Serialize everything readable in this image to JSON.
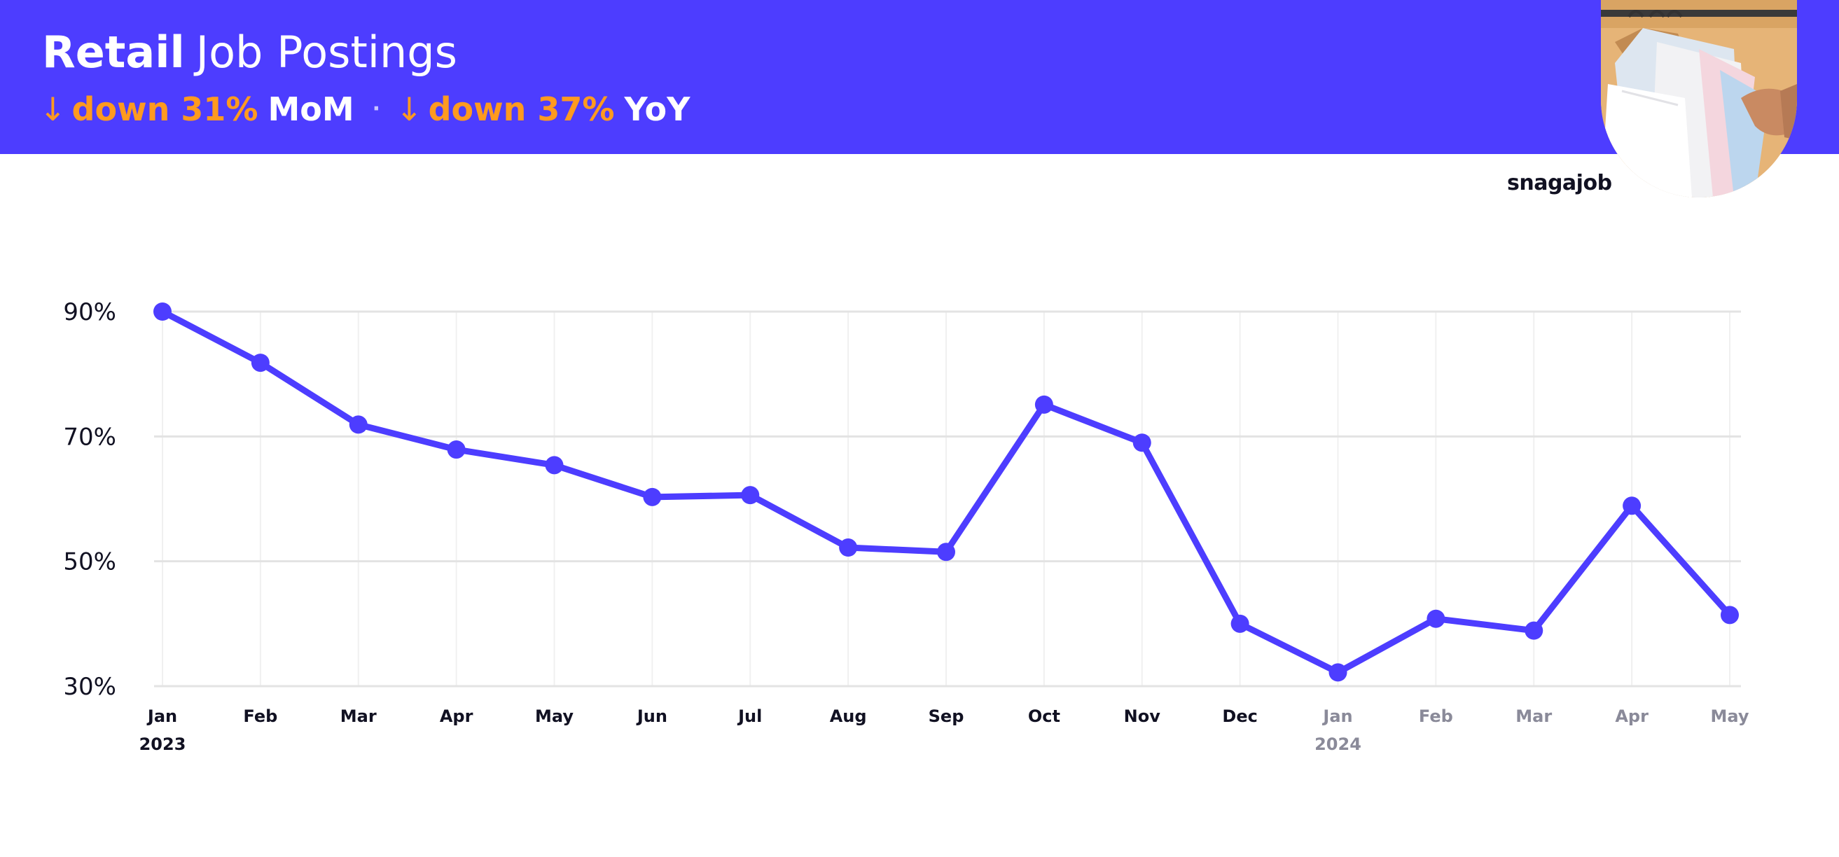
{
  "header": {
    "title_bold": "Retail",
    "title_rest": "Job Postings",
    "mom": {
      "arrow": "↓",
      "text": "down 31%",
      "label": "MoM"
    },
    "separator": "·",
    "yoy": {
      "arrow": "↓",
      "text": "down 37%",
      "label": "YoY"
    }
  },
  "brand": {
    "logo": "snagajob"
  },
  "colors": {
    "banner": "#4d3dff",
    "accent_orange": "#ff9a1f",
    "line": "#4d3dff",
    "grid": "#e3e3e3",
    "tick_dark": "#111122",
    "tick_muted": "#8a8a99"
  },
  "chart_data": {
    "type": "line",
    "title": "",
    "xlabel": "",
    "ylabel": "",
    "ylim": [
      30,
      90
    ],
    "y_ticks": [
      {
        "value": 90,
        "label": "90%"
      },
      {
        "value": 70,
        "label": "70%"
      },
      {
        "value": 50,
        "label": "50%"
      },
      {
        "value": 30,
        "label": "30%"
      }
    ],
    "grid": true,
    "legend": "none",
    "x": [
      {
        "label": "Jan",
        "sub": "2023",
        "muted": false
      },
      {
        "label": "Feb",
        "sub": "",
        "muted": false
      },
      {
        "label": "Mar",
        "sub": "",
        "muted": false
      },
      {
        "label": "Apr",
        "sub": "",
        "muted": false
      },
      {
        "label": "May",
        "sub": "",
        "muted": false
      },
      {
        "label": "Jun",
        "sub": "",
        "muted": false
      },
      {
        "label": "Jul",
        "sub": "",
        "muted": false
      },
      {
        "label": "Aug",
        "sub": "",
        "muted": false
      },
      {
        "label": "Sep",
        "sub": "",
        "muted": false
      },
      {
        "label": "Oct",
        "sub": "",
        "muted": false
      },
      {
        "label": "Nov",
        "sub": "",
        "muted": false
      },
      {
        "label": "Dec",
        "sub": "",
        "muted": false
      },
      {
        "label": "Jan",
        "sub": "2024",
        "muted": true
      },
      {
        "label": "Feb",
        "sub": "",
        "muted": true
      },
      {
        "label": "Mar",
        "sub": "",
        "muted": true
      },
      {
        "label": "Apr",
        "sub": "",
        "muted": true
      },
      {
        "label": "May",
        "sub": "",
        "muted": true
      }
    ],
    "series": [
      {
        "values": [
          90,
          81.8,
          71.9,
          67.9,
          65.4,
          60.3,
          60.6,
          52.2,
          51.5,
          75.1,
          69.0,
          40.0,
          32.2,
          40.8,
          38.9,
          58.9,
          41.4
        ]
      }
    ]
  }
}
